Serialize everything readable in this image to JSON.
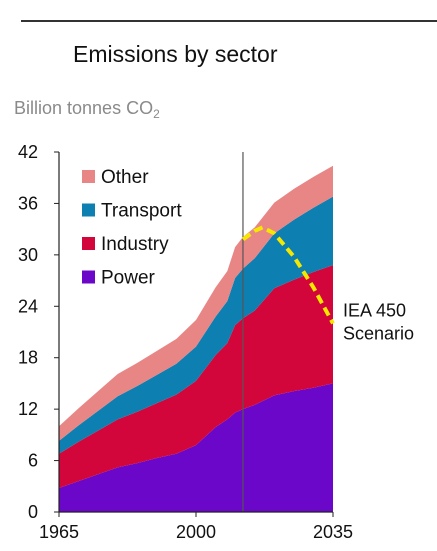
{
  "header": {
    "title": "Emissions by sector",
    "unit_main": "Billion tonnes CO",
    "unit_sub": "2"
  },
  "chart_data": {
    "type": "area",
    "stacked": true,
    "title": "Emissions by sector",
    "ylabel": "Billion tonnes CO2",
    "ylim": [
      0,
      42
    ],
    "xlim": [
      1965,
      2035
    ],
    "y_ticks": [
      0,
      6,
      12,
      18,
      24,
      30,
      36,
      42
    ],
    "x_ticks": [
      1965,
      2000,
      2035
    ],
    "projection_start_year": 2012,
    "x": [
      1965,
      1970,
      1975,
      1980,
      1985,
      1990,
      1995,
      2000,
      2005,
      2008,
      2010,
      2012,
      2015,
      2020,
      2025,
      2030,
      2035
    ],
    "series": [
      {
        "name": "Power",
        "color": "#6a07c9",
        "values": [
          2.8,
          3.6,
          4.4,
          5.2,
          5.7,
          6.3,
          6.8,
          7.8,
          9.9,
          10.8,
          11.6,
          12.0,
          12.5,
          13.6,
          14.1,
          14.5,
          15.0
        ]
      },
      {
        "name": "Industry",
        "color": "#d3063b",
        "values": [
          4.0,
          4.6,
          5.1,
          5.6,
          6.0,
          6.4,
          6.9,
          7.5,
          8.4,
          8.9,
          10.2,
          10.6,
          11.0,
          12.5,
          13.0,
          13.5,
          13.8
        ]
      },
      {
        "name": "Transport",
        "color": "#0d7fb0",
        "values": [
          1.5,
          1.9,
          2.3,
          2.7,
          3.0,
          3.3,
          3.6,
          4.0,
          4.5,
          4.9,
          5.5,
          5.8,
          6.1,
          6.4,
          7.0,
          7.5,
          8.0
        ]
      },
      {
        "name": "Other",
        "color": "#e88686",
        "values": [
          1.7,
          2.0,
          2.3,
          2.6,
          2.7,
          2.8,
          2.9,
          3.1,
          3.4,
          3.5,
          3.6,
          3.7,
          3.6,
          3.6,
          3.6,
          3.6,
          3.6
        ]
      }
    ],
    "scenario": {
      "name": "IEA 450 Scenario",
      "label_lines": [
        "IEA 450",
        "Scenario"
      ],
      "color": "#f5e800",
      "x": [
        2012,
        2015,
        2017,
        2020,
        2025,
        2030,
        2035
      ],
      "values": [
        31.8,
        32.8,
        33.2,
        32.5,
        29.8,
        26.2,
        22.0
      ]
    },
    "legend": {
      "position": "top-left",
      "order": [
        "Other",
        "Transport",
        "Industry",
        "Power"
      ]
    },
    "grid": false
  }
}
